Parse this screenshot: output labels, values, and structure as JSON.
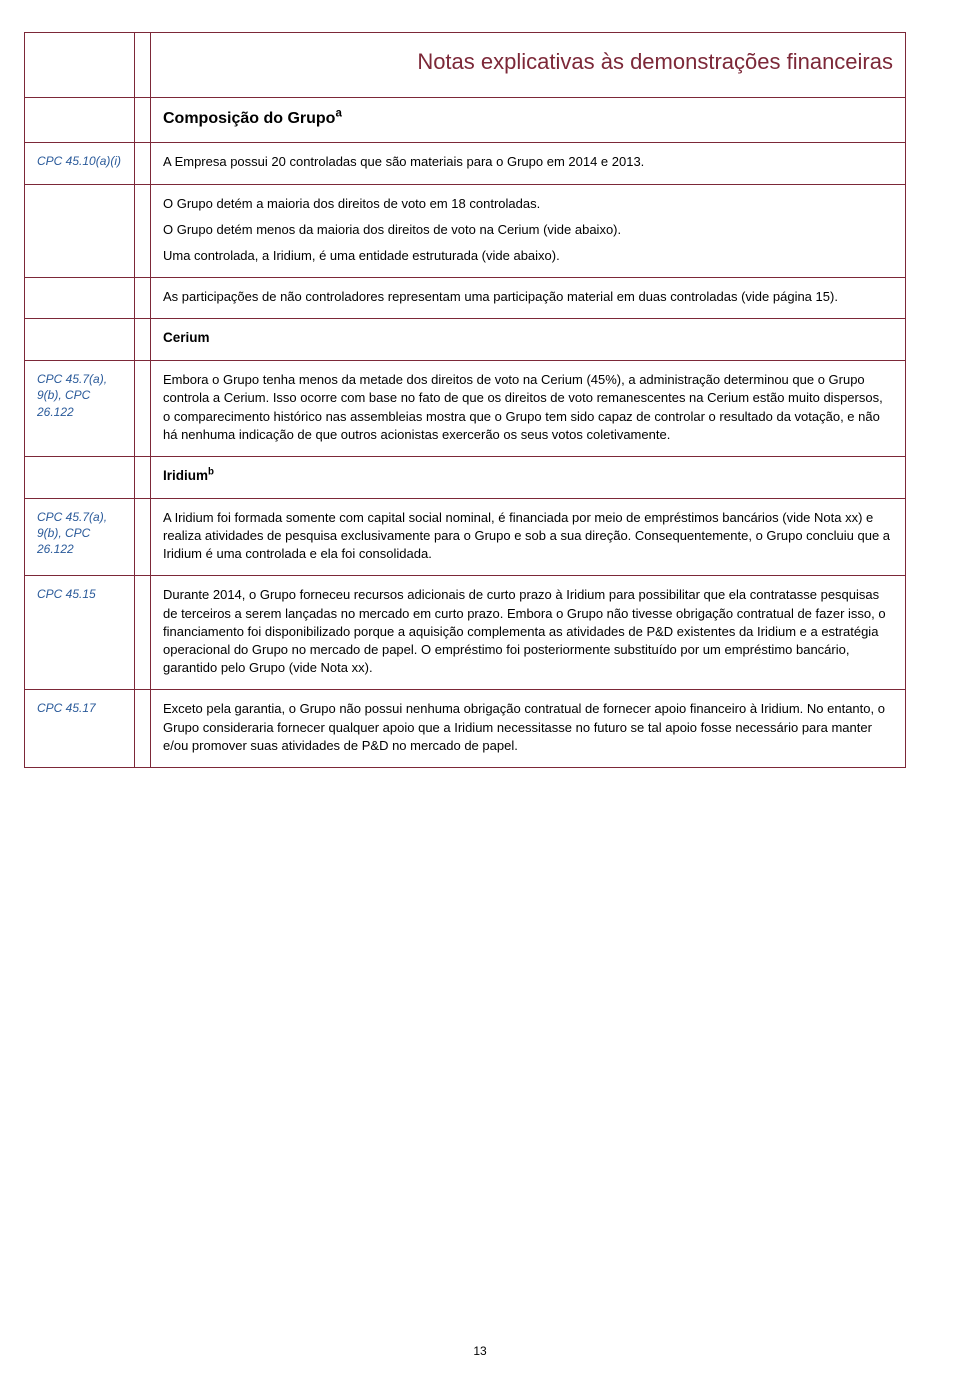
{
  "colors": {
    "border": "#7c2838",
    "heading": "#7c2838",
    "ref_text": "#2a5a9a",
    "body_text": "#000000",
    "background": "#ffffff"
  },
  "typography": {
    "body_size_pt": 10,
    "title_size_pt": 16,
    "section_heading_size_pt": 12,
    "ref_size_pt": 9
  },
  "title": "Notas explicativas às demonstrações financeiras",
  "section_title": "Composição do Grupo",
  "section_title_sup": "a",
  "rows": [
    {
      "ref": "CPC 45.10(a)(i)",
      "paras": [
        "A Empresa possui 20 controladas que são materiais para o Grupo em 2014 e 2013."
      ]
    },
    {
      "ref": "",
      "paras": [
        "O Grupo detém a maioria dos direitos de voto em 18 controladas.",
        "O Grupo detém menos da maioria dos direitos de voto na Cerium (vide abaixo).",
        "Uma controlada, a Iridium, é uma entidade estruturada (vide abaixo)."
      ]
    },
    {
      "ref": "",
      "paras": [
        "As participações de não controladores representam uma participação material em duas controladas (vide página 15)."
      ]
    },
    {
      "ref": "",
      "heading": "Cerium"
    },
    {
      "ref": "CPC 45.7(a), 9(b), CPC 26.122",
      "paras": [
        "Embora o Grupo tenha menos da metade dos direitos de voto na Cerium (45%), a administração determinou que o Grupo controla a Cerium. Isso ocorre com base no fato de que os direitos de voto remanescentes na Cerium estão muito dispersos, o comparecimento histórico nas assembleias mostra que o Grupo tem sido capaz de controlar o resultado da votação, e não há nenhuma indicação de que outros acionistas exercerão os seus votos coletivamente."
      ]
    },
    {
      "ref": "",
      "heading": "Iridium",
      "heading_sup": "b"
    },
    {
      "ref": "CPC 45.7(a), 9(b), CPC 26.122",
      "paras": [
        "A Iridium foi formada somente com capital social nominal, é financiada por meio de empréstimos bancários (vide Nota xx) e realiza atividades de pesquisa exclusivamente para o Grupo e sob a sua direção. Consequentemente, o Grupo concluiu que a Iridium é uma controlada e ela foi consolidada."
      ]
    },
    {
      "ref": "CPC 45.15",
      "paras": [
        "Durante 2014, o Grupo forneceu recursos adicionais de curto prazo à Iridium para possibilitar que ela contratasse pesquisas de terceiros a serem lançadas no mercado em curto prazo. Embora o Grupo não tivesse obrigação contratual de fazer isso, o financiamento foi disponibilizado porque a aquisição complementa as atividades de P&D existentes da Iridium e a estratégia operacional do Grupo no mercado de papel. O empréstimo foi posteriormente substituído por um empréstimo bancário, garantido pelo Grupo (vide Nota xx)."
      ]
    },
    {
      "ref": "CPC 45.17",
      "paras": [
        "Exceto pela garantia, o Grupo não possui nenhuma obrigação contratual de fornecer apoio financeiro à Iridium. No entanto, o Grupo consideraria fornecer qualquer apoio que a Iridium necessitasse no futuro se tal apoio fosse necessário para manter e/ou promover suas atividades de P&D no mercado de papel."
      ]
    }
  ],
  "page_number": "13"
}
